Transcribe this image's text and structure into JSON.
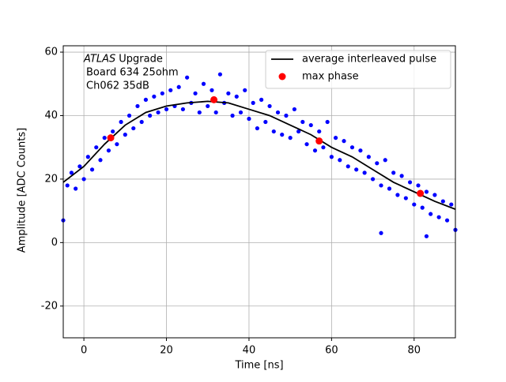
{
  "chart_data": {
    "type": "scatter",
    "xlabel": "Time [ns]",
    "ylabel": "Amplitude [ADC Counts]",
    "annotation_emphasis": "ATLAS",
    "annotation": [
      "Upgrade",
      "Board 634 25ohm",
      "Ch062 35dB"
    ],
    "xlim": [
      -5,
      90
    ],
    "ylim": [
      -30,
      62
    ],
    "xticks": [
      0,
      20,
      40,
      60,
      80
    ],
    "yticks": [
      -20,
      0,
      20,
      40,
      60
    ],
    "grid": true,
    "legend": "upper right",
    "samples": {
      "color": "#0000ff",
      "x": [
        -5,
        -4,
        -3,
        -2,
        -1,
        0,
        1,
        2,
        3,
        4,
        5,
        6,
        7,
        8,
        9,
        10,
        11,
        12,
        13,
        14,
        15,
        16,
        17,
        18,
        19,
        20,
        21,
        22,
        23,
        24,
        25,
        26,
        27,
        28,
        29,
        30,
        31,
        32,
        33,
        34,
        35,
        36,
        37,
        38,
        39,
        40,
        41,
        42,
        43,
        44,
        45,
        46,
        47,
        48,
        49,
        50,
        51,
        52,
        53,
        54,
        55,
        56,
        57,
        58,
        59,
        60,
        61,
        62,
        63,
        64,
        65,
        66,
        67,
        68,
        69,
        70,
        71,
        72,
        72,
        73,
        74,
        75,
        76,
        77,
        78,
        79,
        80,
        81,
        82,
        83,
        83,
        84,
        85,
        86,
        87,
        88,
        89,
        90
      ],
      "values": [
        7,
        18,
        22,
        17,
        24,
        20,
        27,
        23,
        30,
        26,
        33,
        29,
        35,
        31,
        38,
        34,
        40,
        36,
        43,
        38,
        45,
        40,
        46,
        41,
        47,
        42,
        48,
        43,
        49,
        42,
        52,
        44,
        47,
        41,
        50,
        43,
        48,
        41,
        53,
        44,
        47,
        40,
        46,
        41,
        48,
        39,
        44,
        36,
        45,
        38,
        43,
        35,
        41,
        34,
        40,
        33,
        42,
        35,
        38,
        31,
        37,
        29,
        35,
        30,
        38,
        27,
        33,
        26,
        32,
        24,
        30,
        23,
        29,
        22,
        27,
        20,
        25,
        18,
        3,
        26,
        17,
        22,
        15,
        21,
        14,
        19,
        12,
        18,
        11,
        16,
        2,
        9,
        15,
        8,
        13,
        7,
        12,
        4
      ]
    },
    "series": [
      {
        "name": "average interleaved pulse",
        "color": "#000000",
        "kind": "line",
        "x": [
          -5,
          0,
          5,
          10,
          15,
          20,
          25,
          30,
          35,
          40,
          45,
          50,
          55,
          60,
          65,
          70,
          75,
          80,
          85,
          90
        ],
        "values": [
          19,
          24,
          31,
          37,
          41,
          43,
          44,
          44.5,
          44,
          42,
          40,
          37,
          34,
          30,
          27,
          23,
          19,
          16,
          13,
          10.5
        ]
      },
      {
        "name": "max phase",
        "color": "#ff0000",
        "kind": "points",
        "x": [
          6.5,
          31.5,
          57,
          81.5
        ],
        "values": [
          33,
          45,
          32,
          15.5
        ]
      }
    ]
  }
}
